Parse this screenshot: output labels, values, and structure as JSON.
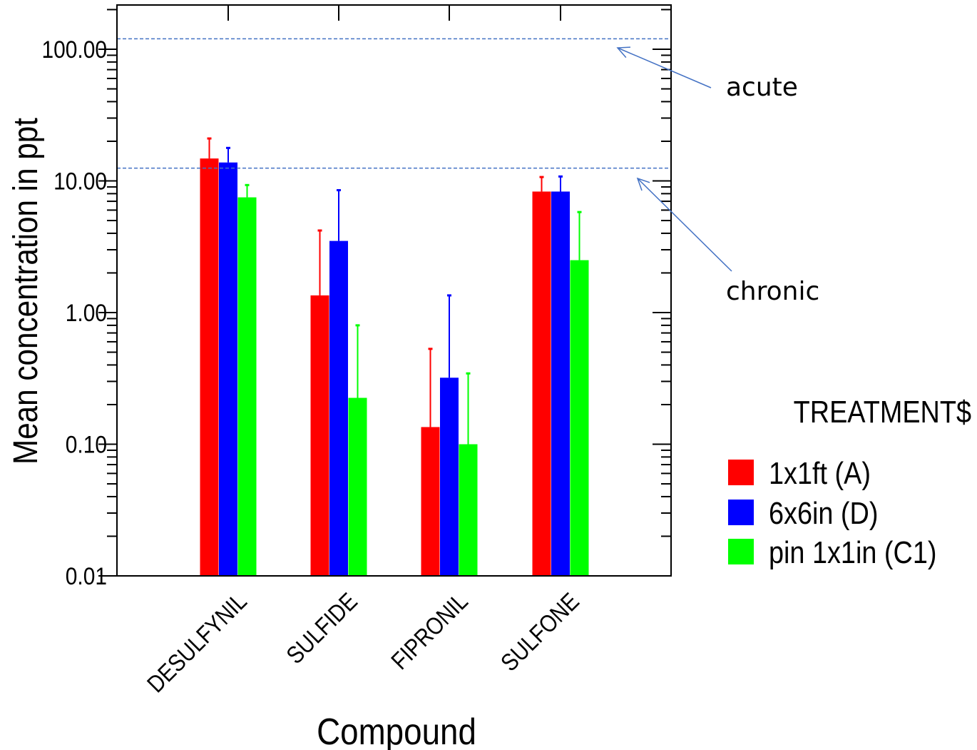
{
  "chart_data": {
    "type": "bar",
    "xlabel": "Compound",
    "ylabel": "Mean concentration in ppt",
    "yscale": "log",
    "ylim": [
      0.01,
      200
    ],
    "yticks": [
      "0.01",
      "0.10",
      "1.00",
      "10.00",
      "100.00"
    ],
    "categories": [
      "DESULFYNIL",
      "SULFIDE",
      "FIPRONIL",
      "SULFONE"
    ],
    "series": [
      {
        "name": "1x1ft (A)",
        "color": "#ff0000",
        "values": [
          14.8,
          1.35,
          0.135,
          8.3
        ],
        "error_upper": [
          21.0,
          4.2,
          0.53,
          10.7
        ]
      },
      {
        "name": "6x6in (D)",
        "color": "#0000ff",
        "values": [
          13.8,
          3.5,
          0.32,
          8.3
        ],
        "error_upper": [
          17.8,
          8.5,
          1.35,
          10.8
        ]
      },
      {
        "name": "pin 1x1in (C1)",
        "color": "#00ff00",
        "values": [
          7.5,
          0.225,
          0.1,
          2.5
        ],
        "error_upper": [
          9.3,
          0.8,
          0.345,
          5.8
        ]
      }
    ],
    "legend": {
      "title": "TREATMENT$",
      "placement": "right"
    },
    "reference_lines": [
      {
        "label": "acute",
        "value": 120,
        "color": "#4472c4"
      },
      {
        "label": "chronic",
        "value": 12.5,
        "color": "#4472c4"
      }
    ]
  }
}
